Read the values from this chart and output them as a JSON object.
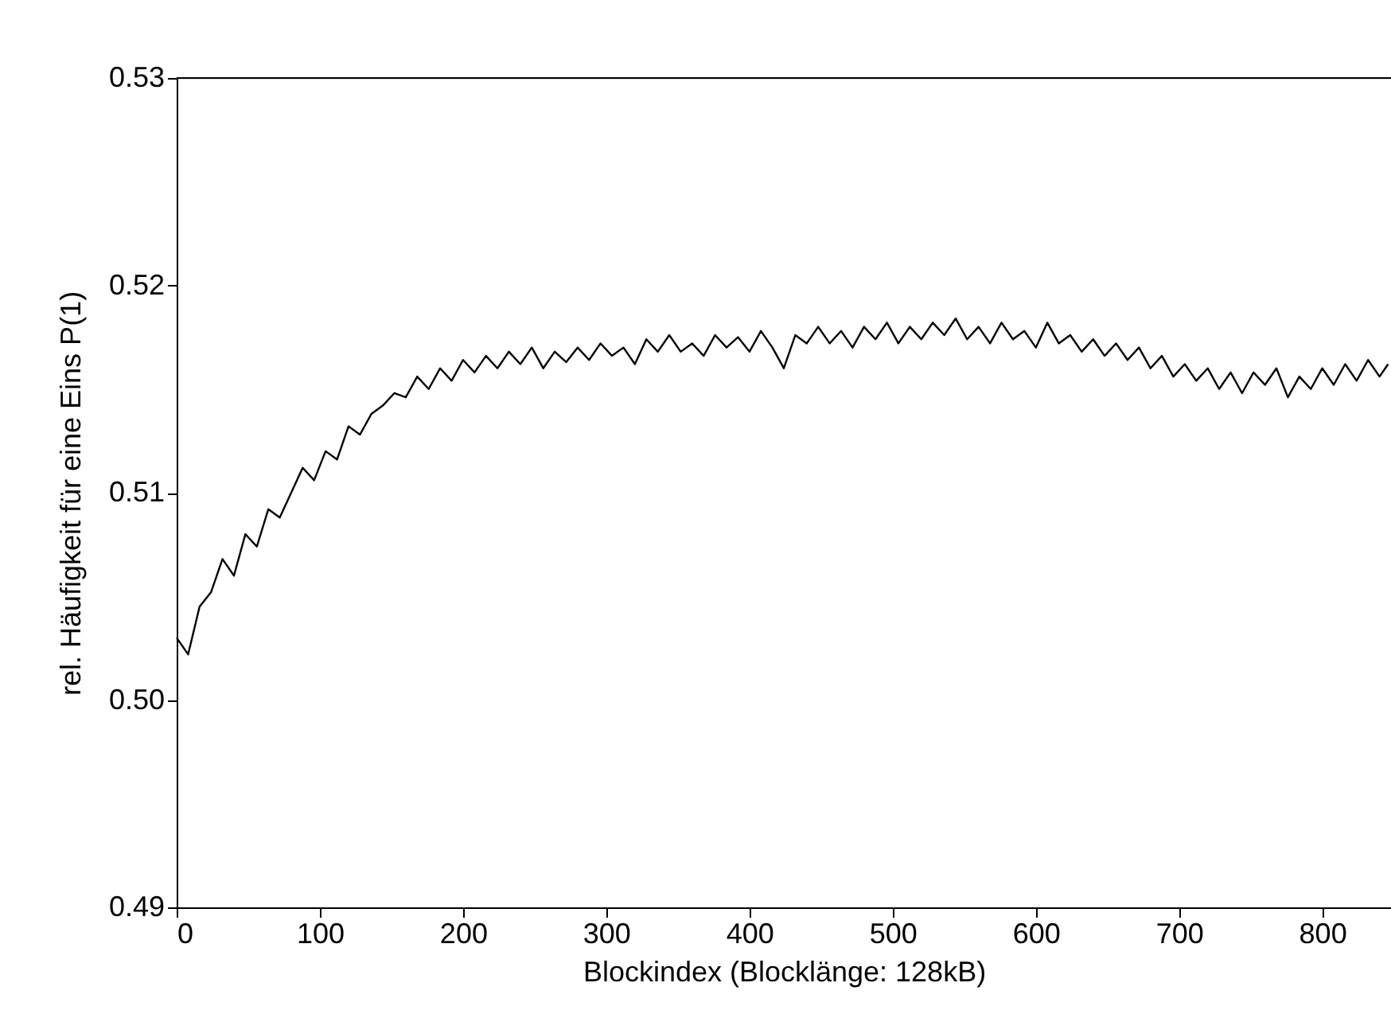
{
  "chart_data": {
    "type": "line",
    "xlabel": "Blockindex (Blocklänge: 128kB)",
    "ylabel": "rel. Häufigkeit für eine Eins  P(1)",
    "xlim": [
      0,
      848
    ],
    "ylim": [
      0.49,
      0.53
    ],
    "xticks": [
      0,
      100,
      200,
      300,
      400,
      500,
      600,
      700,
      800
    ],
    "yticks": [
      0.49,
      {
        "value": 0.5,
        "label": "0.50"
      },
      0.51,
      0.52,
      0.53
    ],
    "grid": false,
    "legend": false,
    "marker": "none",
    "line_style": "solid",
    "x": [
      0,
      8,
      16,
      24,
      32,
      40,
      48,
      56,
      64,
      72,
      80,
      88,
      96,
      104,
      112,
      120,
      128,
      136,
      144,
      152,
      160,
      168,
      176,
      184,
      192,
      200,
      208,
      216,
      224,
      232,
      240,
      248,
      256,
      264,
      272,
      280,
      288,
      296,
      304,
      312,
      320,
      328,
      336,
      344,
      352,
      360,
      368,
      376,
      384,
      392,
      400,
      408,
      416,
      424,
      432,
      440,
      448,
      456,
      464,
      472,
      480,
      488,
      496,
      504,
      512,
      520,
      528,
      536,
      544,
      552,
      560,
      568,
      576,
      584,
      592,
      600,
      608,
      616,
      624,
      632,
      640,
      648,
      656,
      664,
      672,
      680,
      688,
      696,
      704,
      712,
      720,
      728,
      736,
      744,
      752,
      760,
      768,
      776,
      784,
      792,
      800,
      808,
      816,
      824,
      832,
      840,
      846
    ],
    "series": [
      {
        "color": "#000000",
        "values": [
          0.503,
          0.5022,
          0.5045,
          0.5052,
          0.5068,
          0.506,
          0.508,
          0.5074,
          0.5092,
          0.5088,
          0.51,
          0.5112,
          0.5106,
          0.512,
          0.5116,
          0.5132,
          0.5128,
          0.5138,
          0.5142,
          0.5148,
          0.5146,
          0.5156,
          0.515,
          0.516,
          0.5154,
          0.5164,
          0.5158,
          0.5166,
          0.516,
          0.5168,
          0.5162,
          0.517,
          0.516,
          0.5168,
          0.5163,
          0.517,
          0.5164,
          0.5172,
          0.5166,
          0.517,
          0.5162,
          0.5174,
          0.5168,
          0.5176,
          0.5168,
          0.5172,
          0.5166,
          0.5176,
          0.517,
          0.5175,
          0.5168,
          0.5178,
          0.517,
          0.516,
          0.5176,
          0.5172,
          0.518,
          0.5172,
          0.5178,
          0.517,
          0.518,
          0.5174,
          0.5182,
          0.5172,
          0.518,
          0.5174,
          0.5182,
          0.5176,
          0.5184,
          0.5174,
          0.518,
          0.5172,
          0.5182,
          0.5174,
          0.5178,
          0.517,
          0.5182,
          0.5172,
          0.5176,
          0.5168,
          0.5174,
          0.5166,
          0.5172,
          0.5164,
          0.517,
          0.516,
          0.5166,
          0.5156,
          0.5162,
          0.5154,
          0.516,
          0.515,
          0.5158,
          0.5148,
          0.5158,
          0.5152,
          0.516,
          0.5146,
          0.5156,
          0.515,
          0.516,
          0.5152,
          0.5162,
          0.5154,
          0.5164,
          0.5156,
          0.5162
        ]
      }
    ]
  }
}
